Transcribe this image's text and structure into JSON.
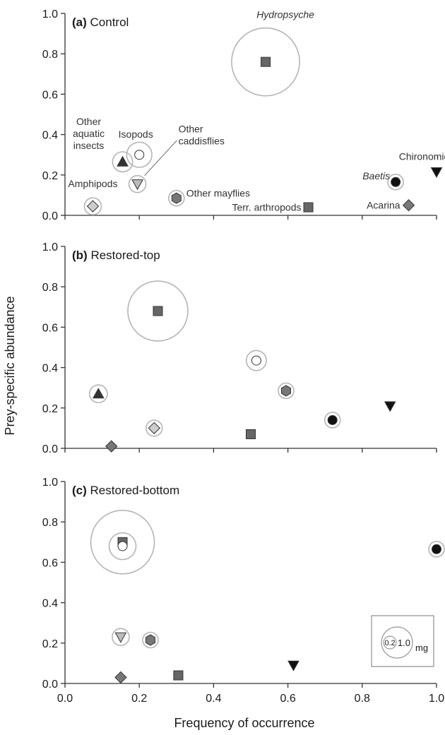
{
  "chart_data": {
    "type": "scatter",
    "encoding": "Bubble scatter plot: x = frequency of occurrence, y = prey-specific abundance; grey circle area is proportional to prey mass (mg)",
    "xlabel": "Frequency of occurrence",
    "ylabel": "Prey-specific abundance",
    "xlim": [
      0,
      1
    ],
    "ylim": [
      0,
      1
    ],
    "ticks": [
      "0.0",
      "0.2",
      "0.4",
      "0.6",
      "0.8",
      "1.0"
    ],
    "grid": false,
    "marker_legend": {
      "Hydropsyche": {
        "shape": "square",
        "fill": "#666666"
      },
      "Terr. arthropods": {
        "shape": "square",
        "fill": "#666666"
      },
      "Isopods": {
        "shape": "circle",
        "fill": "#ffffff"
      },
      "Other aquatic insects": {
        "shape": "triangle-up",
        "fill": "#333333"
      },
      "Other caddisflies": {
        "shape": "triangle-down",
        "fill": "#bbbbbb"
      },
      "Amphipods": {
        "shape": "diamond",
        "fill": "#cccccc"
      },
      "Other mayflies": {
        "shape": "hexagon",
        "fill": "#777777"
      },
      "Baetis": {
        "shape": "circle",
        "fill": "#111111"
      },
      "Chironomids": {
        "shape": "triangle-down",
        "fill": "#111111"
      },
      "Acarina": {
        "shape": "diamond",
        "fill": "#777777"
      }
    },
    "size_legend": {
      "placement": "bottom-right of panel (c)",
      "values": [
        "0.2",
        "1.0"
      ],
      "unit": "mg"
    },
    "panels": [
      {
        "letter": "(a)",
        "title": "Control",
        "points": [
          {
            "taxon": "Hydropsyche",
            "label": "Hydropsyche",
            "label_italic": true,
            "x": 0.54,
            "y": 0.76,
            "mass_mg": 1.6
          },
          {
            "taxon": "Isopods",
            "label": "Isopods",
            "x": 0.2,
            "y": 0.3,
            "mass_mg": 0.22
          },
          {
            "taxon": "Other aquatic insects",
            "label": "Other\naquatic\ninsects",
            "x": 0.155,
            "y": 0.265,
            "mass_mg": 0.14
          },
          {
            "taxon": "Other caddisflies",
            "label": "Other\ncaddisflies",
            "x": 0.195,
            "y": 0.155,
            "mass_mg": 0.1
          },
          {
            "taxon": "Amphipods",
            "label": "Amphipods",
            "x": 0.075,
            "y": 0.045,
            "mass_mg": 0.1
          },
          {
            "taxon": "Other mayflies",
            "label": "Other mayflies",
            "x": 0.3,
            "y": 0.085,
            "mass_mg": 0.07
          },
          {
            "taxon": "Terr. arthropods",
            "label": "Terr. arthropods",
            "x": 0.655,
            "y": 0.04,
            "mass_mg": 0
          },
          {
            "taxon": "Baetis",
            "label": "Baetis",
            "label_italic": true,
            "x": 0.89,
            "y": 0.165,
            "mass_mg": 0.06
          },
          {
            "taxon": "Chironomids",
            "label": "Chironomids",
            "x": 1.0,
            "y": 0.215,
            "mass_mg": 0
          },
          {
            "taxon": "Acarina",
            "label": "Acarina",
            "x": 0.925,
            "y": 0.05,
            "mass_mg": 0
          }
        ]
      },
      {
        "letter": "(b)",
        "title": "Restored-top",
        "points": [
          {
            "taxon": "Hydropsyche",
            "x": 0.25,
            "y": 0.68,
            "mass_mg": 1.25
          },
          {
            "taxon": "Isopods",
            "x": 0.515,
            "y": 0.435,
            "mass_mg": 0.14
          },
          {
            "taxon": "Other mayflies",
            "x": 0.595,
            "y": 0.285,
            "mass_mg": 0.06
          },
          {
            "taxon": "Other aquatic insects",
            "x": 0.09,
            "y": 0.27,
            "mass_mg": 0.11
          },
          {
            "taxon": "Amphipods",
            "x": 0.24,
            "y": 0.1,
            "mass_mg": 0.09
          },
          {
            "taxon": "Acarina",
            "x": 0.125,
            "y": 0.01,
            "mass_mg": 0
          },
          {
            "taxon": "Terr. arthropods",
            "x": 0.5,
            "y": 0.07,
            "mass_mg": 0
          },
          {
            "taxon": "Baetis",
            "x": 0.72,
            "y": 0.14,
            "mass_mg": 0.05
          },
          {
            "taxon": "Chironomids",
            "x": 0.875,
            "y": 0.21,
            "mass_mg": 0
          }
        ]
      },
      {
        "letter": "(c)",
        "title": "Restored-bottom",
        "points": [
          {
            "taxon": "Hydropsyche",
            "x": 0.155,
            "y": 0.7,
            "mass_mg": 1.4
          },
          {
            "taxon": "Isopods",
            "x": 0.155,
            "y": 0.68,
            "mass_mg": 0.25
          },
          {
            "taxon": "Other caddisflies",
            "x": 0.15,
            "y": 0.23,
            "mass_mg": 0.1
          },
          {
            "taxon": "Other mayflies",
            "x": 0.23,
            "y": 0.215,
            "mass_mg": 0.06
          },
          {
            "taxon": "Acarina",
            "x": 0.15,
            "y": 0.03,
            "mass_mg": 0
          },
          {
            "taxon": "Terr. arthropods",
            "x": 0.305,
            "y": 0.04,
            "mass_mg": 0
          },
          {
            "taxon": "Chironomids",
            "x": 0.615,
            "y": 0.09,
            "mass_mg": 0
          },
          {
            "taxon": "Baetis",
            "x": 1.0,
            "y": 0.665,
            "mass_mg": 0.06
          }
        ]
      }
    ]
  }
}
